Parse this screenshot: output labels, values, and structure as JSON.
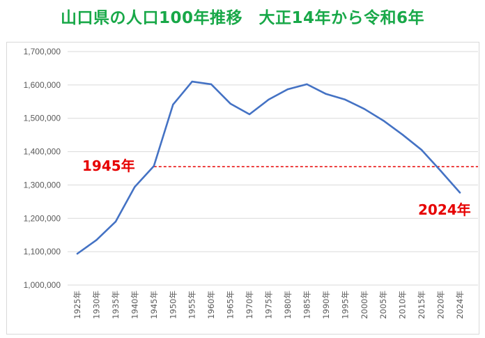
{
  "title": "山口県の人口100年推移　大正14年から令和6年",
  "colors": {
    "title": "#18a848",
    "line": "#4472c4",
    "reference_line": "#e60000",
    "annotation": "#e60000",
    "grid": "#d9d9d9",
    "tick_text": "#595959"
  },
  "chart_data": {
    "type": "line",
    "x": [
      "1925年",
      "1930年",
      "1935年",
      "1940年",
      "1945年",
      "1950年",
      "1955年",
      "1960年",
      "1965年",
      "1970年",
      "1975年",
      "1980年",
      "1985年",
      "1990年",
      "1995年",
      "2000年",
      "2005年",
      "2010年",
      "2015年",
      "2020年",
      "2024年"
    ],
    "series": [
      {
        "values": [
          1094000,
          1135000,
          1190000,
          1294000,
          1357000,
          1541000,
          1610000,
          1602000,
          1544000,
          1512000,
          1556000,
          1587000,
          1602000,
          1573000,
          1556000,
          1528000,
          1493000,
          1451000,
          1405000,
          1342000,
          1277000
        ]
      }
    ],
    "ylim": [
      1000000,
      1700000
    ],
    "y_ticks": [
      "1,000,000",
      "1,100,000",
      "1,200,000",
      "1,300,000",
      "1,400,000",
      "1,500,000",
      "1,600,000",
      "1,700,000"
    ],
    "y_tick_values": [
      1000000,
      1100000,
      1200000,
      1300000,
      1400000,
      1500000,
      1600000,
      1700000
    ],
    "grid": true,
    "reference_line": {
      "value": 1355000,
      "style": "dashed",
      "from": "1945年"
    },
    "annotations": [
      {
        "text": "1945年",
        "anchor": "1945年"
      },
      {
        "text": "2024年",
        "anchor": "2024年"
      }
    ],
    "xlabel": "",
    "ylabel": ""
  }
}
